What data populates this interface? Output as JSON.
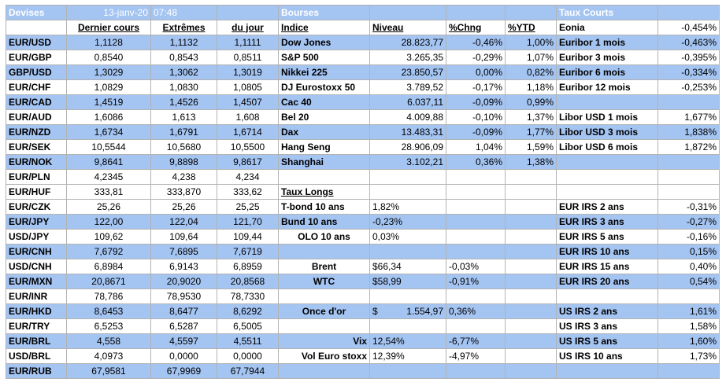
{
  "header": {
    "devises": "Devises",
    "date": "13-janv-20",
    "time": "07:48",
    "bourses": "Bourses",
    "taux_courts": "Taux Courts"
  },
  "columns": {
    "dernier": "Dernier cours",
    "extremes": "Extrêmes",
    "du_jour": "du jour",
    "indice": "Indice",
    "niveau": "Niveau",
    "chng": "%Chng",
    "ytd": "%YTD"
  },
  "fx": [
    {
      "pair": "EUR/USD",
      "last": "1,1128",
      "ext": "1,1132",
      "day": "1,1111"
    },
    {
      "pair": "EUR/GBP",
      "last": "0,8540",
      "ext": "0,8543",
      "day": "0,8511"
    },
    {
      "pair": "GBP/USD",
      "last": "1,3029",
      "ext": "1,3062",
      "day": "1,3019"
    },
    {
      "pair": "EUR/CHF",
      "last": "1,0829",
      "ext": "1,0830",
      "day": "1,0805"
    },
    {
      "pair": "EUR/CAD",
      "last": "1,4519",
      "ext": "1,4526",
      "day": "1,4507"
    },
    {
      "pair": "EUR/AUD",
      "last": "1,6086",
      "ext": "1,613",
      "day": "1,608"
    },
    {
      "pair": "EUR/NZD",
      "last": "1,6734",
      "ext": "1,6791",
      "day": "1,6714"
    },
    {
      "pair": "EUR/SEK",
      "last": "10,5544",
      "ext": "10,5680",
      "day": "10,5500"
    },
    {
      "pair": "EUR/NOK",
      "last": "9,8641",
      "ext": "9,8898",
      "day": "9,8617"
    },
    {
      "pair": "EUR/PLN",
      "last": "4,2345",
      "ext": "4,238",
      "day": "4,234"
    },
    {
      "pair": "EUR/HUF",
      "last": "333,81",
      "ext": "333,870",
      "day": "333,62"
    },
    {
      "pair": "EUR/CZK",
      "last": "25,26",
      "ext": "25,26",
      "day": "25,25"
    },
    {
      "pair": "EUR/JPY",
      "last": "122,00",
      "ext": "122,04",
      "day": "121,70"
    },
    {
      "pair": "USD/JPY",
      "last": "109,62",
      "ext": "109,64",
      "day": "109,44"
    },
    {
      "pair": "EUR/CNH",
      "last": "7,6792",
      "ext": "7,6895",
      "day": "7,6719"
    },
    {
      "pair": "USD/CNH",
      "last": "6,8984",
      "ext": "6,9143",
      "day": "6,8959"
    },
    {
      "pair": "EUR/MXN",
      "last": "20,8671",
      "ext": "20,9020",
      "day": "20,8568"
    },
    {
      "pair": "EUR/INR",
      "last": "78,786",
      "ext": "78,9530",
      "day": "78,7330"
    },
    {
      "pair": "EUR/HKD",
      "last": "8,6453",
      "ext": "8,6477",
      "day": "8,6292"
    },
    {
      "pair": "EUR/TRY",
      "last": "6,5253",
      "ext": "6,5287",
      "day": "6,5005"
    },
    {
      "pair": "EUR/BRL",
      "last": "4,558",
      "ext": "4,5597",
      "day": "4,5511"
    },
    {
      "pair": "USD/BRL",
      "last": "4,0973",
      "ext": "0,0000",
      "day": "0,0000"
    },
    {
      "pair": "EUR/RUB",
      "last": "67,9581",
      "ext": "67,9969",
      "day": "67,7944"
    }
  ],
  "indices": [
    {
      "name": "Dow Jones",
      "level": "28.823,77",
      "chng": "-0,46%",
      "ytd": "1,00%"
    },
    {
      "name": "S&P 500",
      "level": "3.265,35",
      "chng": "-0,29%",
      "ytd": "1,07%"
    },
    {
      "name": "Nikkei 225",
      "level": "23.850,57",
      "chng": "0,00%",
      "ytd": "0,82%"
    },
    {
      "name": "DJ Eurostoxx 50",
      "level": "3.789,52",
      "chng": "-0,17%",
      "ytd": "1,18%"
    },
    {
      "name": "Cac 40",
      "level": "6.037,11",
      "chng": "-0,09%",
      "ytd": "0,99%"
    },
    {
      "name": "Bel 20",
      "level": "4.009,88",
      "chng": "-0,10%",
      "ytd": "1,37%"
    },
    {
      "name": "Dax",
      "level": "13.483,31",
      "chng": "-0,09%",
      "ytd": "1,77%"
    },
    {
      "name": "Hang Seng",
      "level": "28.906,09",
      "chng": "1,04%",
      "ytd": "1,59%"
    },
    {
      "name": "Shanghai",
      "level": "3.102,21",
      "chng": "0,36%",
      "ytd": "1,38%"
    }
  ],
  "taux_longs": {
    "title": "Taux Longs",
    "items": [
      {
        "name": "T-bond 10 ans",
        "value": "1,82%"
      },
      {
        "name": "Bund 10 ans",
        "value": "-0,23%"
      },
      {
        "name": "OLO 10 ans",
        "value": "0,03%"
      }
    ]
  },
  "commodities": [
    {
      "name": "Brent",
      "value": "$66,34",
      "chng": "-0,03%"
    },
    {
      "name": "WTC",
      "value": "$58,99",
      "chng": "-0,91%"
    }
  ],
  "gold": {
    "name": "Once d'or",
    "currency": "$",
    "value": "1.554,97",
    "chng": "0,36%"
  },
  "volatility": [
    {
      "name": "Vix",
      "value": "12,54%",
      "chng": "-6,77%"
    },
    {
      "name": "Vol Euro stoxx",
      "value": "12,39%",
      "chng": "-4,97%"
    }
  ],
  "short_rates": [
    {
      "name": "Eonia",
      "value": "-0,454%"
    },
    {
      "name": "Euribor 1 mois",
      "value": "-0,463%"
    },
    {
      "name": "Euribor 3 mois",
      "value": "-0,395%"
    },
    {
      "name": "Euribor 6 mois",
      "value": "-0,334%"
    },
    {
      "name": "Euribor 12 mois",
      "value": "-0,253%"
    }
  ],
  "libor": [
    {
      "name": "Libor USD 1 mois",
      "value": "1,677%"
    },
    {
      "name": "Libor USD 3 mois",
      "value": "1,838%"
    },
    {
      "name": "Libor USD 6 mois",
      "value": "1,872%"
    }
  ],
  "eur_irs": [
    {
      "name": "EUR IRS 2 ans",
      "value": "-0,31%"
    },
    {
      "name": "EUR IRS 3 ans",
      "value": "-0,27%"
    },
    {
      "name": "EUR IRS 5 ans",
      "value": "-0,16%"
    },
    {
      "name": "EUR IRS 10 ans",
      "value": "0,15%"
    },
    {
      "name": "EUR IRS 15 ans",
      "value": "0,40%"
    },
    {
      "name": "EUR IRS 20 ans",
      "value": "0,54%"
    }
  ],
  "us_irs": [
    {
      "name": "US IRS 2 ans",
      "value": "1,61%"
    },
    {
      "name": "US IRS 3 ans",
      "value": "1,58%"
    },
    {
      "name": "US IRS 5 ans",
      "value": "1,60%"
    },
    {
      "name": "US IRS 10 ans",
      "value": "1,73%"
    }
  ],
  "colors": {
    "row_blue": "#a4c4f2",
    "header_text": "#ffffff",
    "border": "#b3b3b3"
  }
}
